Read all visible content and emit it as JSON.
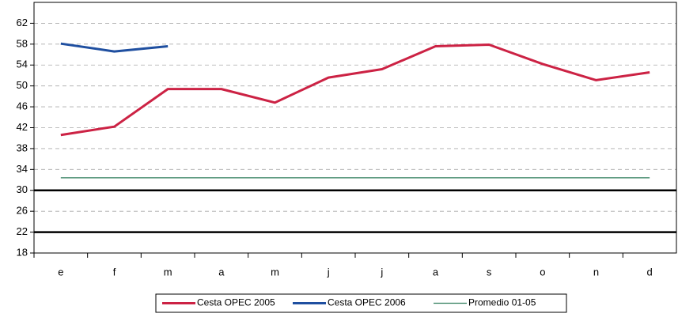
{
  "chart_data": {
    "type": "line",
    "categories": [
      "e",
      "f",
      "m",
      "a",
      "m",
      "j",
      "j",
      "a",
      "s",
      "o",
      "n",
      "d"
    ],
    "series": [
      {
        "name": "Cesta OPEC 2005",
        "color": "#cc2244",
        "width": 3,
        "values": [
          40.6,
          42.2,
          49.4,
          49.4,
          46.8,
          51.6,
          53.2,
          57.6,
          57.9,
          54.2,
          51.1,
          52.6
        ]
      },
      {
        "name": "Cesta OPEC 2006",
        "color": "#1f4fa0",
        "width": 3,
        "values": [
          58.1,
          56.6,
          57.6,
          null,
          null,
          null,
          null,
          null,
          null,
          null,
          null,
          null
        ]
      },
      {
        "name": "Promedio 01-05",
        "color": "#2e7d5b",
        "width": 1.3,
        "values": [
          32.4,
          32.4,
          32.4,
          32.4,
          32.4,
          32.4,
          32.4,
          32.4,
          32.4,
          32.4,
          32.4,
          32.4
        ]
      }
    ],
    "ylim": [
      18,
      66
    ],
    "yticks": [
      18,
      22,
      26,
      30,
      34,
      38,
      42,
      46,
      50,
      54,
      58,
      62
    ],
    "hlines": [
      22,
      30
    ],
    "grid": true,
    "legend": "bottom"
  }
}
